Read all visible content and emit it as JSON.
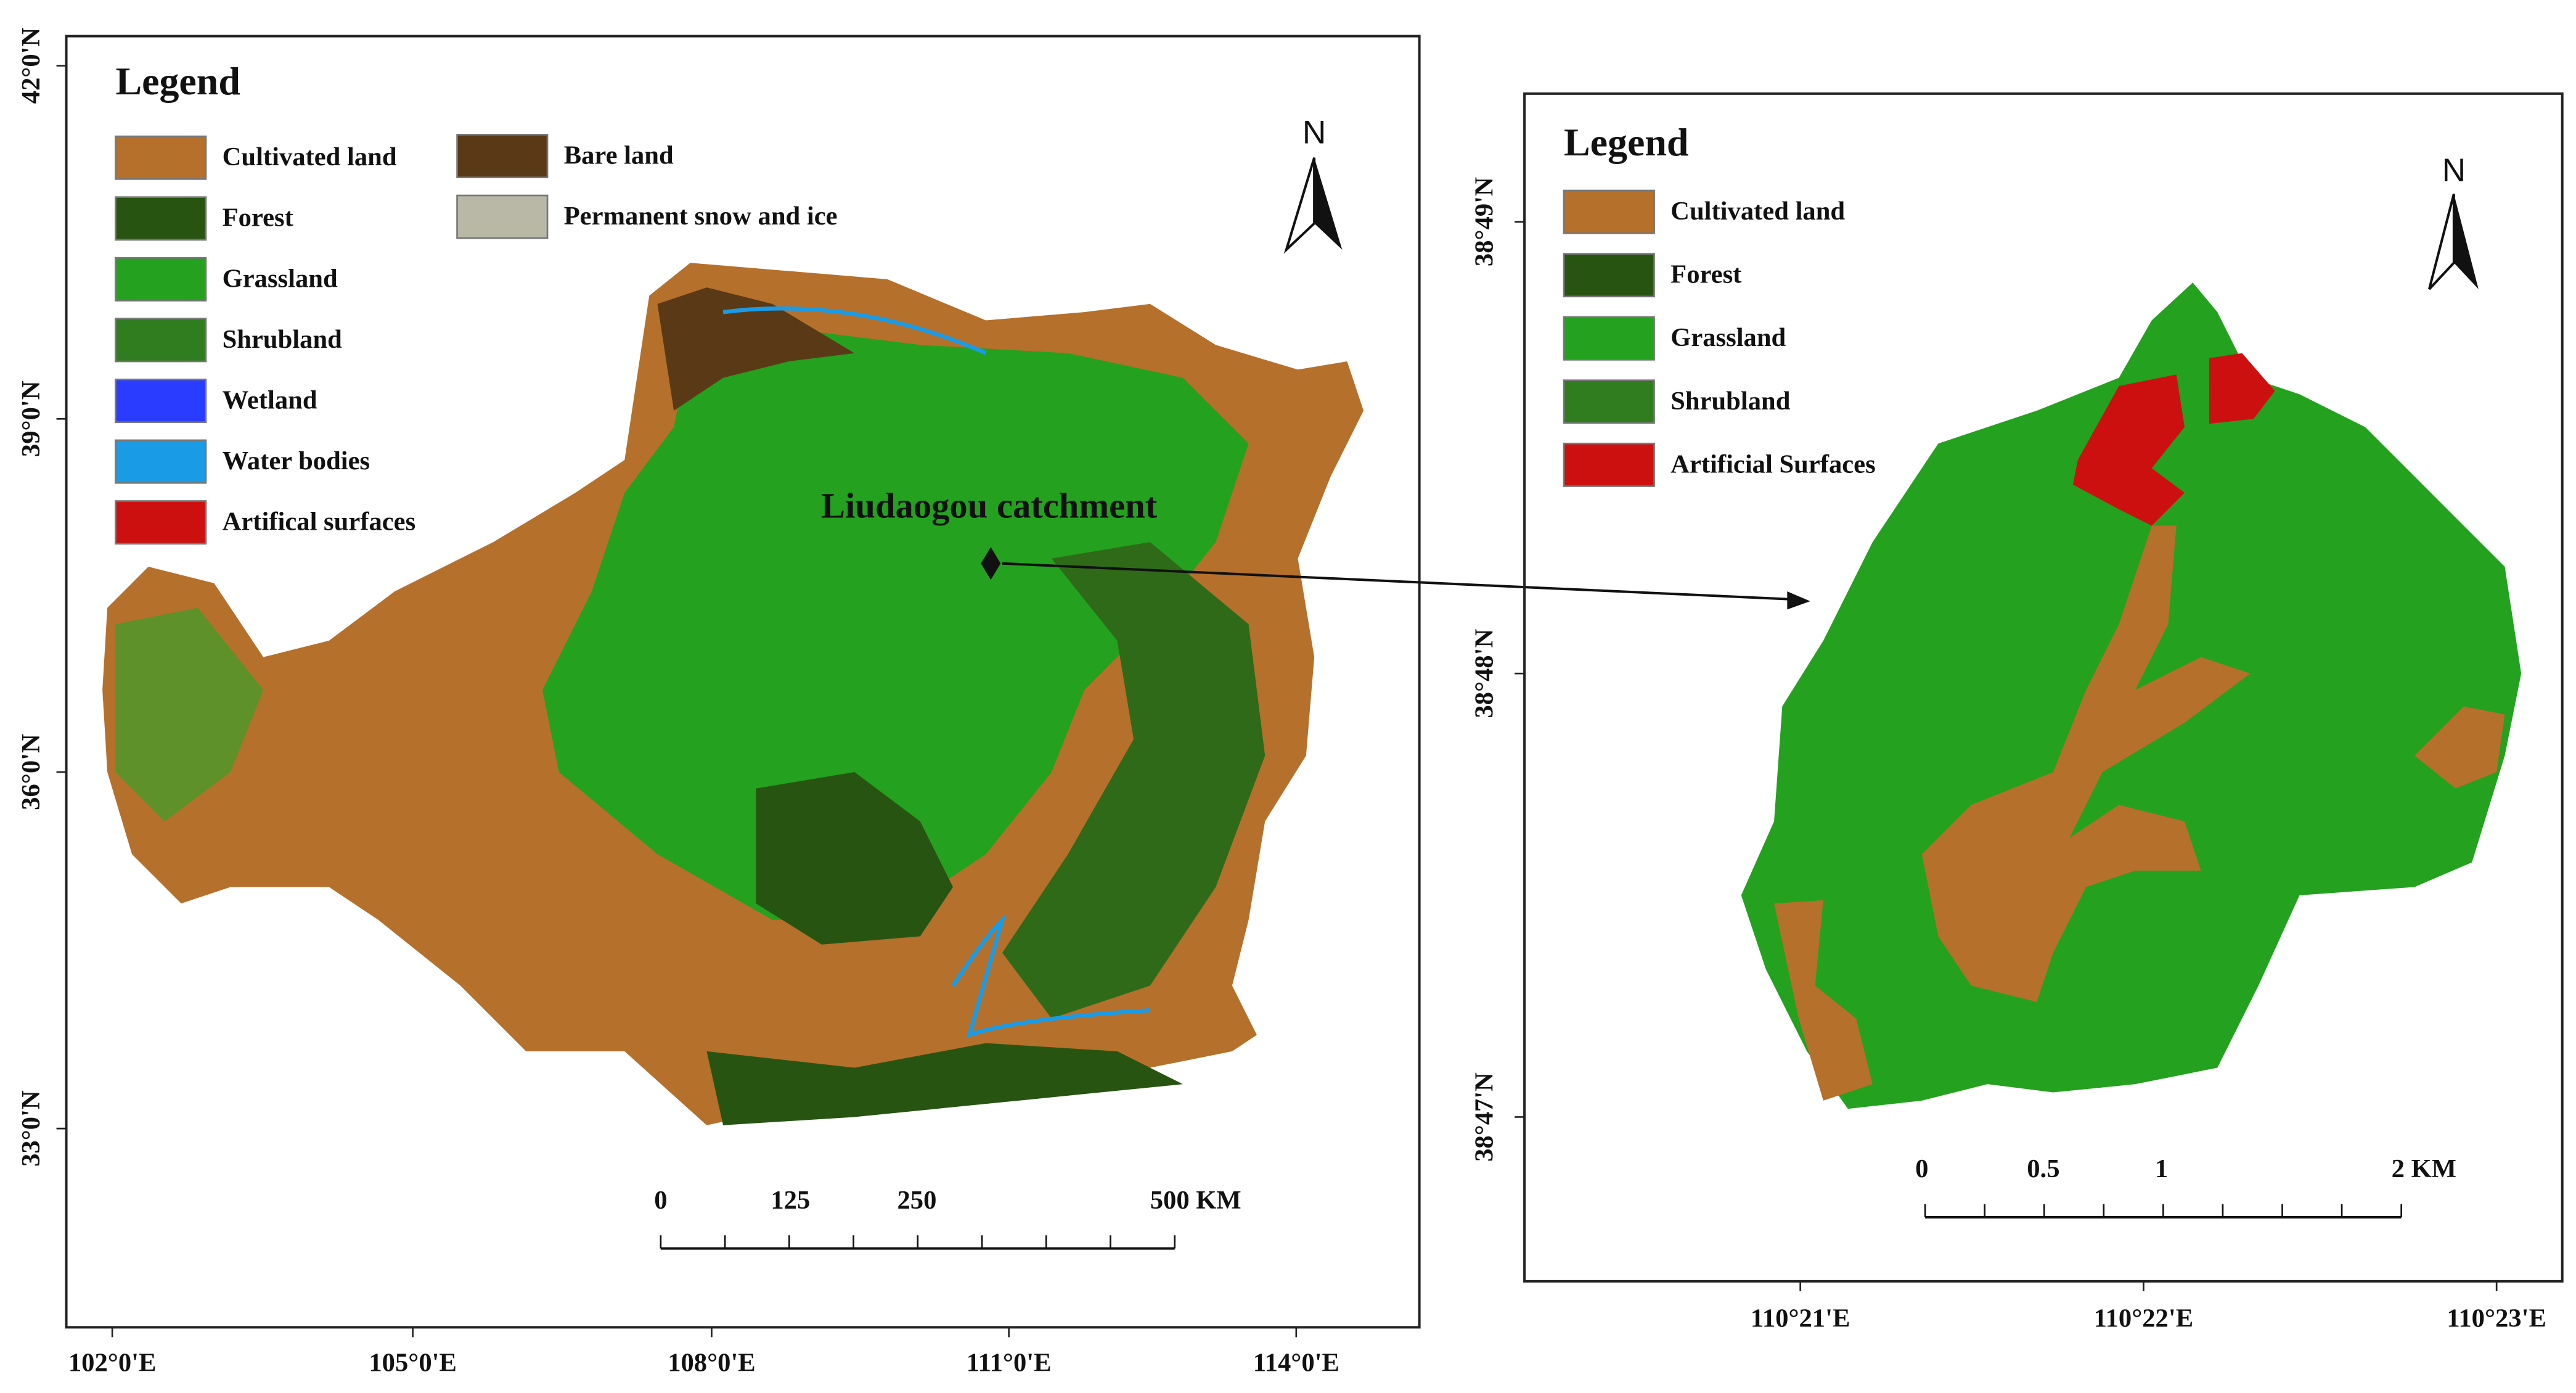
{
  "left_map": {
    "legend": {
      "title": "Legend",
      "items": [
        {
          "label": "Cultivated land",
          "color": "#b5702c"
        },
        {
          "label": "Forest",
          "color": "#285412"
        },
        {
          "label": "Grassland",
          "color": "#24a11e"
        },
        {
          "label": "Shrubland",
          "color": "#2f7d1f"
        },
        {
          "label": "Wetland",
          "color": "#2a3cff"
        },
        {
          "label": "Water bodies",
          "color": "#1a9be6"
        },
        {
          "label": "Artifical surfaces",
          "color": "#cc1010"
        },
        {
          "label": "Bare land",
          "color": "#5a3a16"
        },
        {
          "label": "Permanent snow and ice",
          "color": "#b9b8a6"
        }
      ]
    },
    "north": "N",
    "annotation": "Liudaogou catchment",
    "scale_labels": [
      "0",
      "125",
      "250",
      "500 KM"
    ],
    "lat_labels": [
      "42°0'N",
      "39°0'N",
      "36°0'N",
      "33°0'N"
    ],
    "lon_labels": [
      "102°0'E",
      "105°0'E",
      "108°0'E",
      "111°0'E",
      "114°0'E"
    ]
  },
  "right_map": {
    "legend": {
      "title": "Legend",
      "items": [
        {
          "label": "Cultivated land",
          "color": "#b5702c"
        },
        {
          "label": "Forest",
          "color": "#285412"
        },
        {
          "label": "Grassland",
          "color": "#24a11e"
        },
        {
          "label": "Shrubland",
          "color": "#2f7d1f"
        },
        {
          "label": "Artificial Surfaces",
          "color": "#cc1010"
        }
      ]
    },
    "north": "N",
    "scale_labels": [
      "0",
      "0.5",
      "1",
      "2 KM"
    ],
    "lat_labels": [
      "38°49'N",
      "38°48'N",
      "38°47'N"
    ],
    "lon_labels": [
      "110°21'E",
      "110°22'E",
      "110°23'E"
    ]
  }
}
